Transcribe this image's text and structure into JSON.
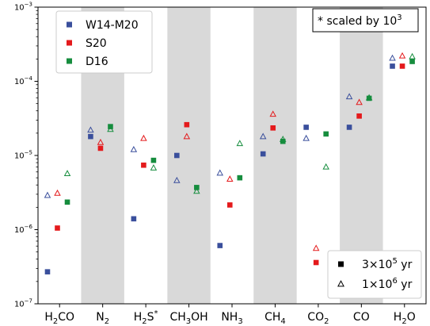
{
  "chart_data": {
    "type": "scatter",
    "yscale": "log",
    "ylim": [
      1e-07,
      0.001
    ],
    "yticks": [
      {
        "value": 1e-07,
        "mant": "10",
        "exp": "−7"
      },
      {
        "value": 1e-06,
        "mant": "10",
        "exp": "−6"
      },
      {
        "value": 1e-05,
        "mant": "10",
        "exp": "−5"
      },
      {
        "value": 0.0001,
        "mant": "10",
        "exp": "−4"
      },
      {
        "value": 0.001,
        "mant": "10",
        "exp": "−3"
      }
    ],
    "categories": [
      {
        "base": "H",
        "sub": "2",
        "rest": "CO",
        "sup": ""
      },
      {
        "base": "N",
        "sub": "2",
        "rest": "",
        "sup": ""
      },
      {
        "base": "H",
        "sub": "2",
        "rest": "S",
        "sup": "*"
      },
      {
        "base": "CH",
        "sub": "3",
        "rest": "OH",
        "sup": ""
      },
      {
        "base": "NH",
        "sub": "3",
        "rest": "",
        "sup": ""
      },
      {
        "base": "CH",
        "sub": "4",
        "rest": "",
        "sup": ""
      },
      {
        "base": "CO",
        "sub": "2",
        "rest": "",
        "sup": ""
      },
      {
        "base": "CO",
        "sub": "",
        "rest": "",
        "sup": ""
      },
      {
        "base": "H",
        "sub": "2",
        "rest": "O",
        "sup": ""
      }
    ],
    "shaded_categories": [
      1,
      3,
      5,
      7
    ],
    "series": [
      {
        "name": "W14-M20",
        "color": "#3a4f9c",
        "offset": -0.28,
        "square": [
          2.7e-07,
          1.8e-05,
          1.4e-06,
          1e-05,
          6.1e-07,
          1.05e-05,
          2.4e-05,
          2.4e-05,
          0.00016
        ],
        "triangle": [
          2.9e-06,
          2.2e-05,
          1.2e-05,
          4.6e-06,
          5.8e-06,
          1.8e-05,
          1.7e-05,
          6.2e-05,
          0.000205
        ]
      },
      {
        "name": "S20",
        "color": "#e41a1c",
        "offset": -0.05,
        "square": [
          1.05e-06,
          1.25e-05,
          7.4e-06,
          2.6e-05,
          2.15e-06,
          2.35e-05,
          3.6e-07,
          3.4e-05,
          0.00016
        ],
        "triangle": [
          3.1e-06,
          1.5e-05,
          1.7e-05,
          1.8e-05,
          4.8e-06,
          3.6e-05,
          5.6e-07,
          5.2e-05,
          0.00022
        ]
      },
      {
        "name": "D16",
        "color": "#168d3e",
        "offset": 0.18,
        "square": [
          2.35e-06,
          2.45e-05,
          8.6e-06,
          3.7e-06,
          5e-06,
          1.55e-05,
          1.95e-05,
          5.9e-05,
          0.000185
        ],
        "triangle": [
          5.7e-06,
          2.25e-05,
          6.8e-06,
          3.3e-06,
          1.45e-05,
          1.65e-05,
          7e-06,
          6e-05,
          0.000215
        ]
      }
    ],
    "note": {
      "prefix": "* scaled by 10",
      "exp": "3"
    },
    "marker_legend": [
      {
        "shape": "square",
        "label": "3×10",
        "exp": "5",
        "unit": " yr"
      },
      {
        "shape": "triangle",
        "label": "1×10",
        "exp": "6",
        "unit": " yr"
      }
    ],
    "legend_placement": "top-left",
    "marker_legend_placement": "bottom-right",
    "grid": false
  }
}
